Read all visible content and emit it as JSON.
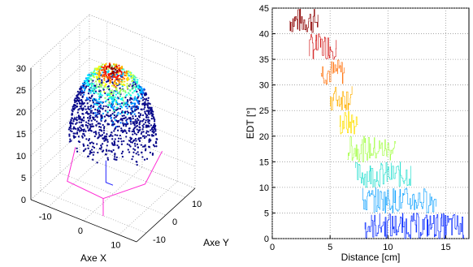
{
  "chart_data": [
    {
      "type": "scatter",
      "subtype": "3d-scatter",
      "xlabel": "Axe X",
      "ylabel": "Axe Y",
      "zlabel": "",
      "x_ticks": [
        "-10",
        "0",
        "10"
      ],
      "y_ticks": [
        "-10",
        "0",
        "10"
      ],
      "z_ticks": [
        "0",
        "5",
        "10",
        "15",
        "20",
        "25",
        "30"
      ],
      "xlim": [
        -15,
        15
      ],
      "ylim": [
        -15,
        15
      ],
      "zlim": [
        0,
        30
      ],
      "grid": true,
      "colormap": "jet",
      "description_series": [
        {
          "values": "dome of dark-blue points from about z=12 to z=29, colored jet by value (blue edge, yellow/red core)"
        },
        {
          "values": "magenta polyline outline below dome at about z=0-9"
        }
      ]
    },
    {
      "type": "line",
      "subtype": "stepped-histogram-lines",
      "xlabel": "Distance [cm]",
      "ylabel": "EDT [°]",
      "x_ticks": [
        "0",
        "5",
        "10",
        "15"
      ],
      "y_ticks": [
        "0",
        "5",
        "10",
        "15",
        "20",
        "25",
        "30",
        "35",
        "40",
        "45"
      ],
      "xlim": [
        0,
        17
      ],
      "ylim": [
        0,
        45
      ],
      "grid": true,
      "colormap": "jet",
      "bands": [
        {
          "y": [
            40,
            45
          ],
          "x": [
            1.5,
            4.0
          ],
          "color": "#8c0000"
        },
        {
          "y": [
            35,
            40
          ],
          "x": [
            3.2,
            5.6
          ],
          "color": "#d42020"
        },
        {
          "y": [
            30,
            35
          ],
          "x": [
            4.2,
            6.3
          ],
          "color": "#ff7a1a"
        },
        {
          "y": [
            25,
            30
          ],
          "x": [
            5.0,
            6.9
          ],
          "color": "#ffb000"
        },
        {
          "y": [
            20,
            25
          ],
          "x": [
            5.8,
            7.4
          ],
          "color": "#ffe000"
        },
        {
          "y": [
            15,
            20
          ],
          "x": [
            6.5,
            10.7
          ],
          "color": "#a8ff4e"
        },
        {
          "y": [
            10,
            15
          ],
          "x": [
            7.2,
            12.0
          ],
          "color": "#2ee0d0"
        },
        {
          "y": [
            5,
            10
          ],
          "x": [
            7.8,
            14.2
          ],
          "color": "#1aa6ff"
        },
        {
          "y": [
            0,
            5
          ],
          "x": [
            8.0,
            16.6
          ],
          "color": "#0a2cff"
        }
      ]
    }
  ]
}
